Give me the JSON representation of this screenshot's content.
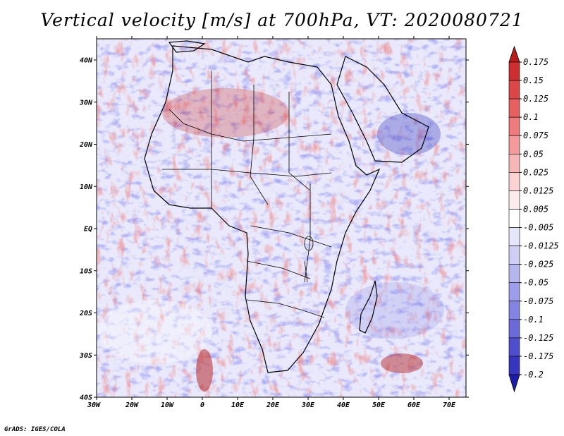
{
  "title": "Vertical velocity [m/s] at 700hPa, VT: 2020080721",
  "credit": "GrADS: IGES/COLA",
  "lat_labels": [
    "40N",
    "30N",
    "20N",
    "10N",
    "EQ",
    "10S",
    "20S",
    "30S",
    "40S"
  ],
  "lon_labels": [
    "30W",
    "20W",
    "10W",
    "0",
    "10E",
    "20E",
    "30E",
    "40E",
    "50E",
    "60E",
    "70E"
  ],
  "colorbar": {
    "labels": [
      "0.175",
      "0.15",
      "0.125",
      "0.1",
      "0.075",
      "0.05",
      "0.025",
      "0.0125",
      "0.005",
      "-0.005",
      "-0.0125",
      "-0.025",
      "-0.05",
      "-0.075",
      "-0.1",
      "-0.125",
      "-0.175",
      "-0.2"
    ],
    "colors": [
      "#b81c1c",
      "#cc2f2f",
      "#db4747",
      "#e66060",
      "#ee7c7c",
      "#f49a9a",
      "#f8b7b7",
      "#fbd3d3",
      "#fdecec",
      "#ffffff",
      "#e6e6fa",
      "#cfcff5",
      "#b6b6ef",
      "#9d9deb",
      "#8383e3",
      "#6a6ad9",
      "#4f4fcd",
      "#3535be",
      "#1c1ca8"
    ]
  }
}
